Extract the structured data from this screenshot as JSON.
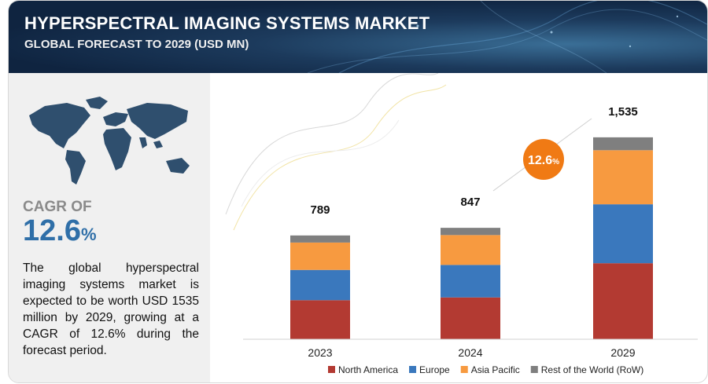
{
  "header": {
    "title": "HYPERSPECTRAL IMAGING SYSTEMS MARKET",
    "subtitle": "GLOBAL FORECAST TO 2029 (USD MN)"
  },
  "summary": {
    "cagr_label": "CAGR OF",
    "cagr_value": "12.6",
    "cagr_unit": "%",
    "description": "The global hyperspectral imaging systems market is expected to be worth USD 1535 million by 2029, growing at a CAGR of 12.6% during the forecast period."
  },
  "colors": {
    "north_america": "#b33a32",
    "europe": "#3a78bd",
    "asia_pacific": "#f79a40",
    "rest_of_world": "#7f7f7f",
    "cagr_bubble": "#f07a14",
    "header_bg": "#1c3a5c",
    "accent_text": "#2f6fa8"
  },
  "icons": {
    "map": "world-map-icon"
  },
  "chart_data": {
    "type": "bar",
    "stacked": true,
    "categories": [
      "2023",
      "2024",
      "2029"
    ],
    "totals": [
      "789",
      "847",
      "1,535"
    ],
    "series": [
      {
        "name": "North America",
        "color": "#b33a32",
        "values": [
          297,
          318,
          578
        ]
      },
      {
        "name": "Europe",
        "color": "#3a78bd",
        "values": [
          230,
          247,
          448
        ]
      },
      {
        "name": "Asia Pacific",
        "color": "#f79a40",
        "values": [
          208,
          227,
          411
        ]
      },
      {
        "name": "Rest of the World (RoW)",
        "color": "#7f7f7f",
        "values": [
          54,
          55,
          98
        ]
      }
    ],
    "annotation": {
      "text": "12.6",
      "unit": "%"
    },
    "ylim": [
      0,
      1600
    ],
    "grid": false,
    "legend_position": "bottom"
  }
}
